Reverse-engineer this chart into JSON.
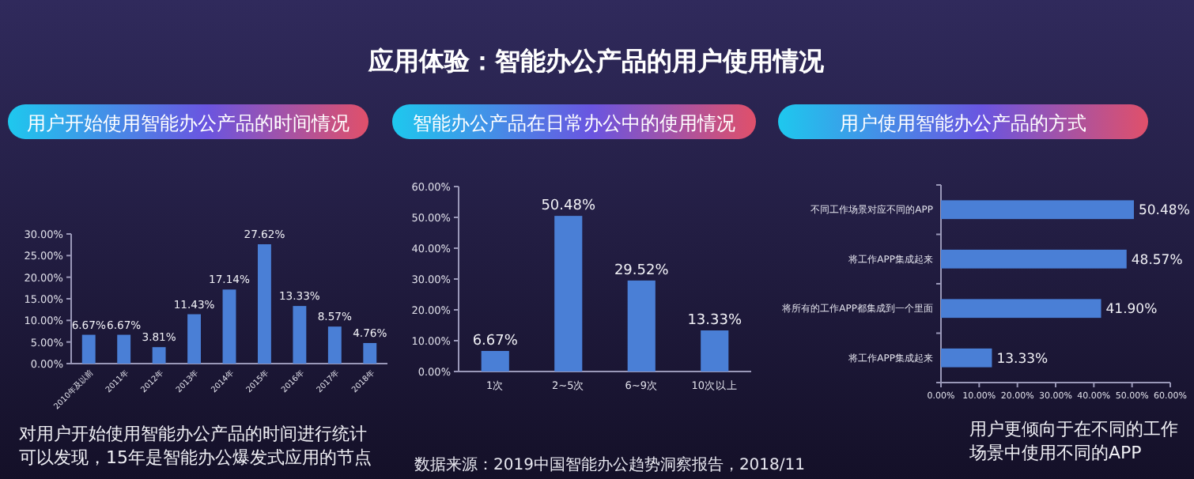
{
  "chart_data": [
    {
      "type": "other",
      "title": "应用体验：智能办公产品的用户使用情况",
      "annotations": [
        "数据来源：2019中国智能办公趋势洞察报告，2018/11"
      ]
    },
    {
      "type": "bar",
      "title": "用户开始使用智能办公产品的时间情况",
      "categories": [
        "2010年及以前",
        "2011年",
        "2012年",
        "2013年",
        "2014年",
        "2015年",
        "2016年",
        "2017年",
        "2018年"
      ],
      "color": "#4a7fd6",
      "values": [
        6.67,
        6.67,
        3.81,
        11.43,
        17.14,
        27.62,
        13.33,
        8.57,
        4.76
      ],
      "value_labels": [
        "6.67%",
        "6.67%",
        "3.81%",
        "11.43%",
        "17.14%",
        "27.62%",
        "13.33%",
        "8.57%",
        "4.76%"
      ],
      "ylim": [
        0,
        30
      ],
      "yticks": [
        {
          "value": 0,
          "label": "0.00%"
        },
        {
          "value": 5,
          "label": "5.00%"
        },
        {
          "value": 10,
          "label": "10.00%"
        },
        {
          "value": 15,
          "label": "15.00%"
        },
        {
          "value": 20,
          "label": "20.00%"
        },
        {
          "value": 25,
          "label": "25.00%"
        },
        {
          "value": 30,
          "label": "30.00%"
        }
      ],
      "grid": false,
      "annotations": [
        "对用户开始使用智能办公产品的时间进行统计可以发现，15年是智能办公爆发式应用的节点。"
      ]
    },
    {
      "type": "bar",
      "title": "智能办公产品在日常办公中的使用情况",
      "categories": [
        "1次",
        "2~5次",
        "6~9次",
        "10次以上"
      ],
      "color": "#4a7fd6",
      "values": [
        6.67,
        50.48,
        29.52,
        13.33
      ],
      "value_labels": [
        "6.67%",
        "50.48%",
        "29.52%",
        "13.33%"
      ],
      "ylim": [
        0,
        60
      ],
      "yticks": [
        {
          "value": 0,
          "label": "0.00%"
        },
        {
          "value": 10,
          "label": "10.00%"
        },
        {
          "value": 20,
          "label": "20.00%"
        },
        {
          "value": 30,
          "label": "30.00%"
        },
        {
          "value": 40,
          "label": "40.00%"
        },
        {
          "value": 50,
          "label": "50.00%"
        },
        {
          "value": 60,
          "label": "60.00%"
        }
      ],
      "grid": false
    },
    {
      "type": "bar",
      "orientation": "horizontal",
      "title": "用户使用智能办公产品的方式",
      "categories": [
        "不同工作场景对应不同的APP",
        "将工作APP集成起来",
        "将所有的工作APP都集成到一个里面",
        "将工作APP集成起来"
      ],
      "color": "#4a7fd6",
      "values": [
        50.48,
        48.57,
        41.9,
        13.33
      ],
      "value_labels": [
        "50.48%",
        "48.57%",
        "41.90%",
        "13.33%"
      ],
      "xlim": [
        0,
        60
      ],
      "xticks": [
        {
          "value": 0,
          "label": "0.00%"
        },
        {
          "value": 10,
          "label": "10.00%"
        },
        {
          "value": 20,
          "label": "20.00%"
        },
        {
          "value": 30,
          "label": "30.00%"
        },
        {
          "value": 40,
          "label": "40.00%"
        },
        {
          "value": 50,
          "label": "50.00%"
        },
        {
          "value": 60,
          "label": "60.00%"
        }
      ],
      "grid": false,
      "annotations": [
        "用户更倾向于在不同的工作场景中使用不同的APP"
      ]
    }
  ]
}
